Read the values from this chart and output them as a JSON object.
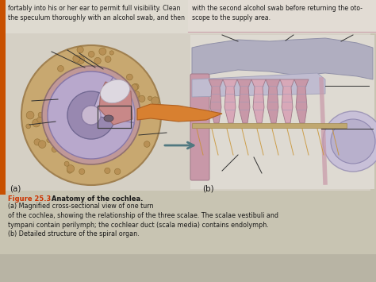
{
  "page_bg": "#c8c4b2",
  "top_left_bg": "#dedad0",
  "top_right_bg": "#e2dcd4",
  "diagram_bg": "#d8d4c8",
  "orange_strip_color": "#c85000",
  "top_left_text": "fortably into his or her ear to permit full visibility. Clean\nthe speculum thoroughly with an alcohol swab, and then",
  "top_right_text": "with the second alcohol swab before returning the oto-\nscope to the supply area.",
  "label_a": "(a)",
  "label_b": "(b)",
  "caption_bold": "Figure 25.3",
  "caption_bold2": " Anatomy of the cochlea.",
  "caption_normal": " (a) Magnified cross-sectional view of one turn\nof the cochlea, showing the relationship of the three scalae. The scalae vestibuli and\ntympani contain perilymph; the cochlear duct (scala media) contains endolymph.\n(b) Detailed structure of the spiral organ.",
  "fig_caption_color": "#cc3300",
  "text_color": "#1a1a1a",
  "bone_color": "#c8a870",
  "bone_edge": "#a08050",
  "spot_color": "#b89055",
  "spot_edge": "#907035",
  "outer_membrane": "#c0a8c8",
  "outer_membrane_edge": "#907090",
  "scala_vest_color": "#b8a0c8",
  "scala_vest_edge": "#806898",
  "scala_med_color": "#c89090",
  "scala_med_edge": "#906060",
  "scala_tymp_color": "#a898b8",
  "scala_tymp_edge": "#706080",
  "inner_lavender": "#b0a0c0",
  "inner_dark": "#8878a8",
  "center_light": "#d0c8dc",
  "pink_region": "#d0909a",
  "orange_nerve": "#d88030",
  "orange_nerve_edge": "#b06020",
  "arrow_color": "#507880",
  "line_color": "#303030",
  "rect_color": "#404040",
  "b_bg": "#dedad2",
  "b_upper_gray": "#b0aac0",
  "b_lavender": "#b8b0cc",
  "b_pink_cells": "#c898a8",
  "b_stripes": "#9898b8",
  "b_orange_nerve": "#c8902a",
  "b_round_window": "#c8b8c8"
}
